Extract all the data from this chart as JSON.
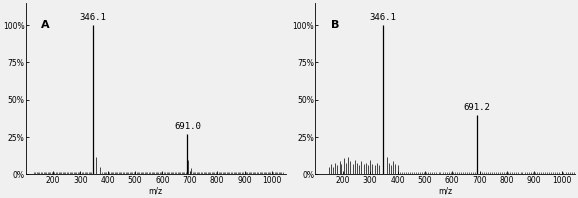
{
  "panel_A": {
    "label": "A",
    "main_peaks": [
      {
        "mz": 346.1,
        "intensity": 100,
        "label": "346.1"
      },
      {
        "mz": 691.0,
        "intensity": 27,
        "label": "691.0"
      }
    ],
    "secondary_peaks": [
      {
        "mz": 358,
        "intensity": 12
      },
      {
        "mz": 370,
        "intensity": 5
      },
      {
        "mz": 695,
        "intensity": 10
      },
      {
        "mz": 703,
        "intensity": 4
      }
    ],
    "noise_mz": [
      130,
      135,
      140,
      145,
      150,
      155,
      160,
      165,
      170,
      175,
      180,
      185,
      190,
      195,
      200,
      205,
      210,
      215,
      220,
      225,
      230,
      235,
      240,
      245,
      250,
      255,
      260,
      265,
      270,
      275,
      280,
      285,
      290,
      295,
      300,
      305,
      310,
      315,
      320,
      325,
      330,
      335,
      340,
      380,
      385,
      390,
      395,
      400,
      405,
      410,
      415,
      420,
      425,
      430,
      435,
      440,
      445,
      450,
      455,
      460,
      465,
      470,
      475,
      480,
      485,
      490,
      495,
      500,
      505,
      510,
      515,
      520,
      525,
      530,
      535,
      540,
      545,
      550,
      555,
      560,
      565,
      570,
      575,
      580,
      585,
      590,
      595,
      600,
      605,
      610,
      615,
      620,
      625,
      630,
      635,
      640,
      645,
      650,
      655,
      660,
      665,
      670,
      675,
      680,
      685,
      710,
      715,
      720,
      725,
      730,
      735,
      740,
      745,
      750,
      755,
      760,
      765,
      770,
      775,
      780,
      785,
      790,
      795,
      800,
      805,
      810,
      815,
      820,
      825,
      830,
      835,
      840,
      845,
      850,
      855,
      860,
      865,
      870,
      875,
      880,
      885,
      890,
      895,
      900,
      905,
      910,
      915,
      920,
      925,
      930,
      935,
      940,
      945,
      950,
      955,
      960,
      965,
      970,
      975,
      980,
      985,
      990,
      995,
      1000,
      1005,
      1010,
      1015,
      1020,
      1025,
      1030,
      1035,
      1040
    ],
    "noise_intensity": 1.8,
    "xlim": [
      100,
      1050
    ],
    "xticks": [
      200,
      300,
      400,
      500,
      600,
      700,
      800,
      900,
      1000
    ],
    "xlabel": "m/z"
  },
  "panel_B": {
    "label": "B",
    "main_peaks": [
      {
        "mz": 346.1,
        "intensity": 100,
        "label": "346.1"
      },
      {
        "mz": 691.2,
        "intensity": 40,
        "label": "691.2"
      }
    ],
    "secondary_peaks": [
      {
        "mz": 150,
        "intensity": 5
      },
      {
        "mz": 158,
        "intensity": 7
      },
      {
        "mz": 165,
        "intensity": 5
      },
      {
        "mz": 172,
        "intensity": 8
      },
      {
        "mz": 180,
        "intensity": 6
      },
      {
        "mz": 188,
        "intensity": 9
      },
      {
        "mz": 195,
        "intensity": 7
      },
      {
        "mz": 205,
        "intensity": 11
      },
      {
        "mz": 213,
        "intensity": 8
      },
      {
        "mz": 220,
        "intensity": 12
      },
      {
        "mz": 228,
        "intensity": 9
      },
      {
        "mz": 236,
        "intensity": 7
      },
      {
        "mz": 244,
        "intensity": 10
      },
      {
        "mz": 252,
        "intensity": 8
      },
      {
        "mz": 260,
        "intensity": 6
      },
      {
        "mz": 268,
        "intensity": 9
      },
      {
        "mz": 276,
        "intensity": 7
      },
      {
        "mz": 284,
        "intensity": 8
      },
      {
        "mz": 292,
        "intensity": 6
      },
      {
        "mz": 300,
        "intensity": 10
      },
      {
        "mz": 308,
        "intensity": 7
      },
      {
        "mz": 316,
        "intensity": 6
      },
      {
        "mz": 324,
        "intensity": 8
      },
      {
        "mz": 332,
        "intensity": 6
      },
      {
        "mz": 360,
        "intensity": 12
      },
      {
        "mz": 368,
        "intensity": 8
      },
      {
        "mz": 376,
        "intensity": 6
      },
      {
        "mz": 384,
        "intensity": 9
      },
      {
        "mz": 392,
        "intensity": 7
      },
      {
        "mz": 400,
        "intensity": 6
      }
    ],
    "noise_mz": [
      408,
      415,
      422,
      430,
      437,
      445,
      452,
      460,
      467,
      475,
      482,
      490,
      497,
      505,
      512,
      520,
      527,
      535,
      542,
      550,
      557,
      565,
      572,
      580,
      587,
      595,
      602,
      610,
      617,
      625,
      632,
      640,
      647,
      655,
      662,
      670,
      677,
      685,
      700,
      708,
      715,
      722,
      730,
      737,
      745,
      752,
      760,
      767,
      775,
      782,
      790,
      797,
      805,
      812,
      820,
      827,
      835,
      842,
      850,
      857,
      865,
      872,
      880,
      887,
      895,
      902,
      910,
      917,
      925,
      932,
      940,
      947,
      955,
      962,
      970,
      977,
      985,
      992,
      1000,
      1007,
      1015,
      1022,
      1030,
      1037,
      1045
    ],
    "noise_intensity": 1.5,
    "xlim": [
      100,
      1050
    ],
    "xticks": [
      200,
      300,
      400,
      500,
      600,
      700,
      800,
      900,
      1000
    ],
    "xlabel": "m/z"
  },
  "yticks": [
    0,
    25,
    50,
    75,
    100
  ],
  "yticklabels": [
    "0%",
    "25%",
    "50%",
    "75%",
    "100%"
  ],
  "ylim": [
    0,
    115
  ],
  "bar_color": "#000000",
  "bg_color": "#f0f0f0",
  "label_fontsize": 6.5,
  "tick_fontsize": 5.5,
  "panel_label_fontsize": 8
}
